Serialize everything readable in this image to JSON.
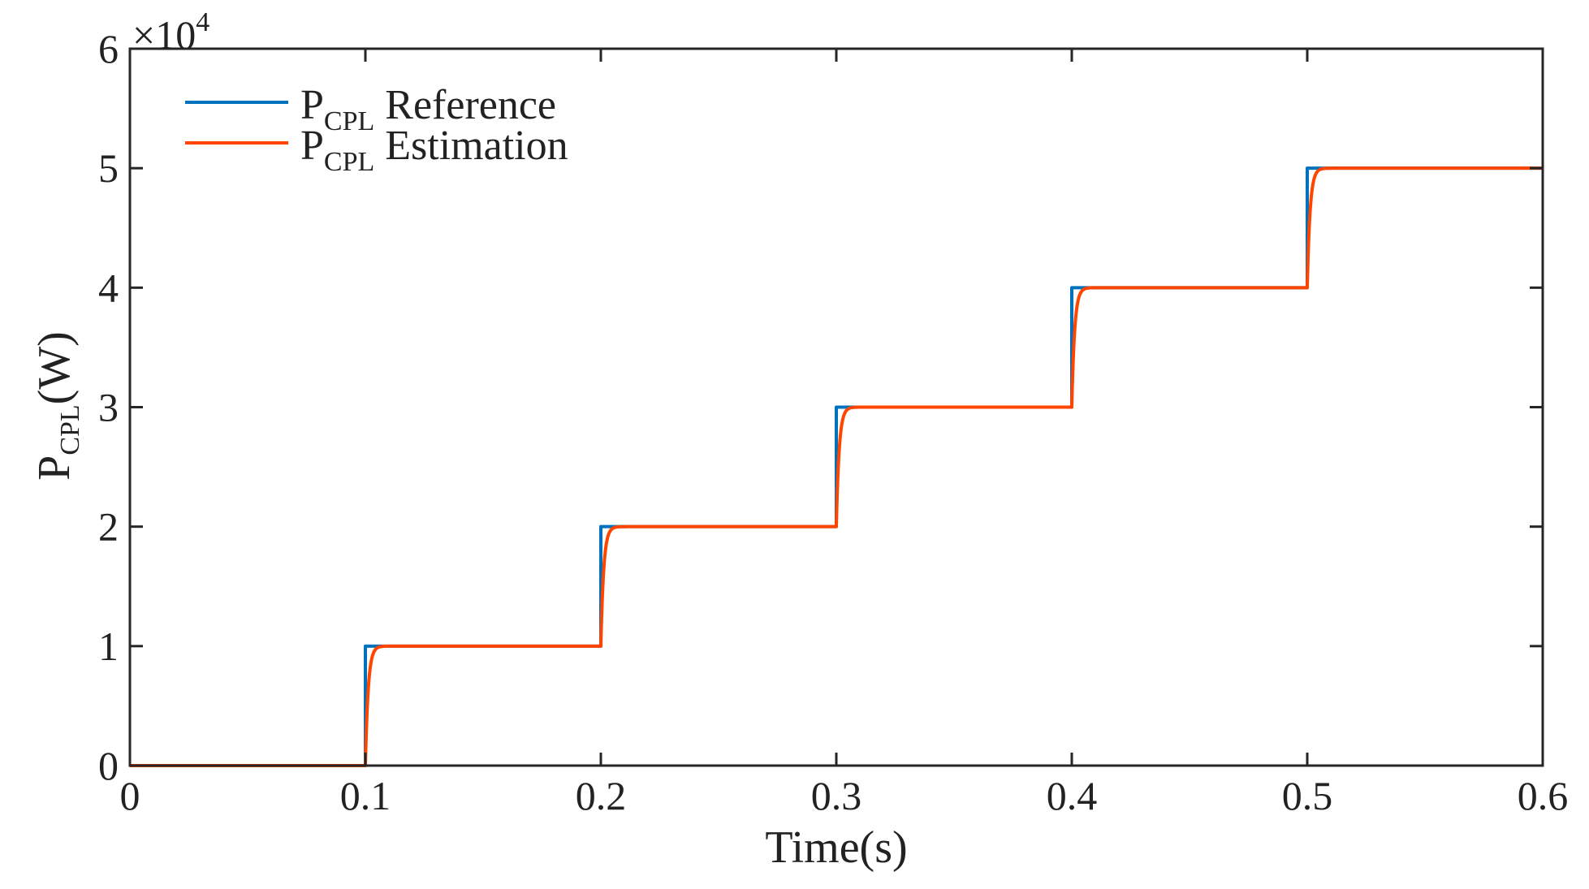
{
  "chart_data": {
    "type": "line",
    "title": "",
    "xlabel": "Time(s)",
    "ylabel": {
      "base": "P",
      "subscript": "CPL",
      "suffix": "(W)"
    },
    "xlim": [
      0,
      0.6
    ],
    "ylim": [
      0,
      6
    ],
    "y_multiplier": {
      "prefix": "×10",
      "exponent": "4"
    },
    "xticks": [
      0,
      0.1,
      0.2,
      0.3,
      0.4,
      0.5,
      0.6
    ],
    "xtick_labels": [
      "0",
      "0.1",
      "0.2",
      "0.3",
      "0.4",
      "0.5",
      "0.6"
    ],
    "yticks": [
      0,
      1,
      2,
      3,
      4,
      5,
      6
    ],
    "ytick_labels": [
      "0",
      "1",
      "2",
      "3",
      "4",
      "5",
      "6"
    ],
    "grid": false,
    "legend_position": "top-left",
    "series": [
      {
        "name": "P_CPL Reference",
        "label_base": "P",
        "label_sub": "CPL",
        "label_rest": " Reference",
        "color": "#0072BD",
        "kind": "step",
        "x": [
          0,
          0.1,
          0.1,
          0.2,
          0.2,
          0.3,
          0.3,
          0.4,
          0.4,
          0.5,
          0.5,
          0.6
        ],
        "values": [
          0,
          0,
          1,
          1,
          2,
          2,
          3,
          3,
          4,
          4,
          5,
          5
        ]
      },
      {
        "name": "P_CPL Estimation",
        "label_base": "P",
        "label_sub": "CPL",
        "label_rest": " Estimation",
        "color": "#FF4500",
        "kind": "first-order-response",
        "step_times": [
          0.1,
          0.2,
          0.3,
          0.4,
          0.5
        ],
        "step_levels": [
          0,
          1,
          2,
          3,
          4,
          5
        ],
        "time_constant_s": 0.0012
      }
    ]
  }
}
